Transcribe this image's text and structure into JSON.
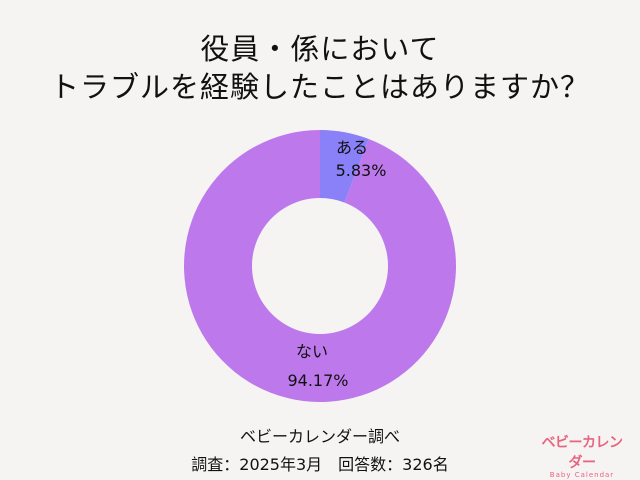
{
  "title": {
    "line1": "役員・係において",
    "line2": "トラブルを経験したことはありますか？"
  },
  "chart_data": {
    "type": "pie",
    "variant": "donut",
    "title": "役員・係において トラブルを経験したことはありますか？",
    "slices": [
      {
        "label": "ある",
        "value": 5.83,
        "display": "5.83%",
        "color": "#8a80f8"
      },
      {
        "label": "ない",
        "value": 94.17,
        "display": "94.17%",
        "color": "#bd78ec"
      }
    ],
    "legend": "none"
  },
  "footer": {
    "source": "ベビーカレンダー調べ",
    "survey": "調査：2025年3月　回答数：326名"
  },
  "logo": {
    "main": "ベビーカレンダー",
    "sub": "Baby Calendar"
  }
}
